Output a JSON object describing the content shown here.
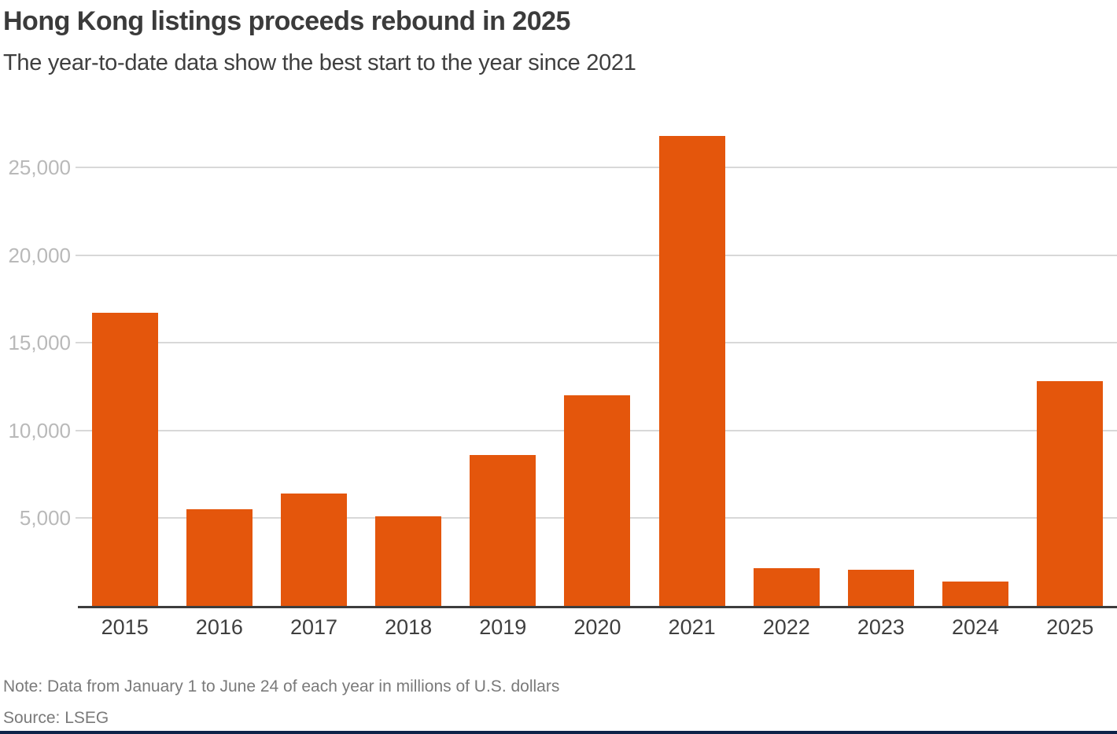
{
  "header": {
    "title": "Hong Kong listings proceeds rebound in 2025",
    "subtitle": "The year-to-date data show the best start to the year since 2021"
  },
  "chart_data": {
    "type": "bar",
    "title": "Hong Kong listings proceeds rebound in 2025",
    "subtitle": "The year-to-date data show the best start to the year since 2021",
    "categories": [
      "2015",
      "2016",
      "2017",
      "2018",
      "2019",
      "2020",
      "2021",
      "2022",
      "2023",
      "2024",
      "2025"
    ],
    "values": [
      16700,
      5500,
      6400,
      5100,
      8600,
      12000,
      26800,
      2150,
      2050,
      1400,
      12800
    ],
    "xlabel": "",
    "ylabel": "",
    "ylim": [
      0,
      27000
    ],
    "yticks": [
      5000,
      10000,
      15000,
      20000,
      25000
    ],
    "ytick_labels": [
      "5,000",
      "10,000",
      "15,000",
      "20,000",
      "25,000"
    ],
    "grid": true,
    "legend": false,
    "units": "millions of U.S. dollars"
  },
  "footer": {
    "note": "Note: Data from January 1 to June 24 of each year in millions of U.S. dollars",
    "source": "Source: LSEG"
  },
  "colors": {
    "bar": "#e4560c",
    "gridline": "#d8d8d8",
    "axis_line": "#3d3d3d",
    "ytick_label": "#b9b9b9",
    "xtick_label": "#3f3f3f",
    "title": "#3b3b3b",
    "note": "#7a7a7a",
    "bottom_rule": "#0e2349"
  }
}
